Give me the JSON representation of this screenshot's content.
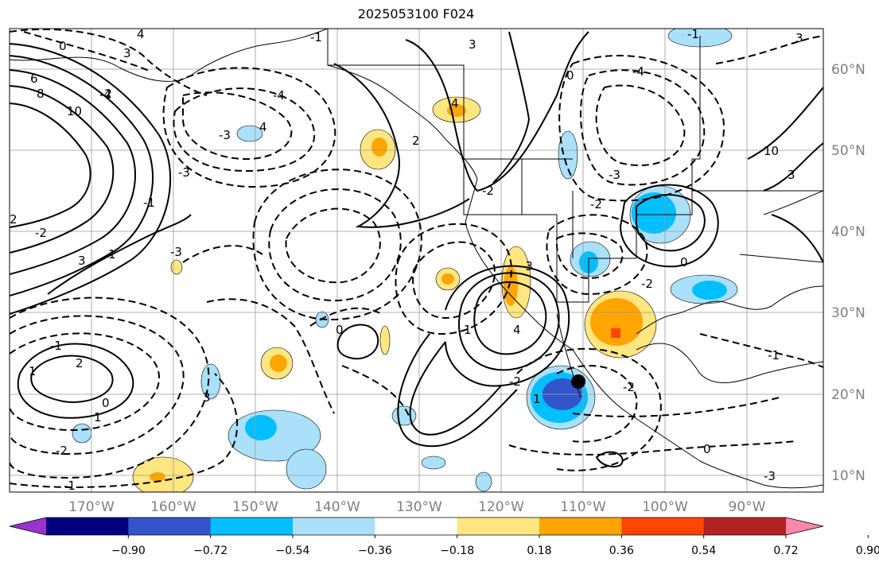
{
  "title": "2025053100 F024",
  "lon_ticks": [
    "170°W",
    "160°W",
    "150°W",
    "140°W",
    "130°W",
    "120°W",
    "110°W",
    "100°W",
    "90°W"
  ],
  "lat_ticks": [
    "60°N",
    "50°N",
    "40°N",
    "30°N",
    "20°N",
    "10°N"
  ],
  "colorbar": {
    "colors": [
      "#9933cc",
      "#000080",
      "#3355cc",
      "#00bfff",
      "#aae0fa",
      "#ffffff",
      "#ffe680",
      "#ffa500",
      "#ff4500",
      "#b22222",
      "#ff88aa"
    ],
    "labels": [
      "−0.90",
      "−0.72",
      "−0.54",
      "−0.36",
      "−0.18",
      "0.18",
      "0.36",
      "0.54",
      "0.72",
      "0.90"
    ]
  },
  "contour_labels": [
    "4",
    "3",
    "0",
    "-1",
    "6",
    "8",
    "10",
    "2",
    "3",
    "-2",
    "-4",
    "-3",
    "4",
    "3",
    "-4",
    "-2",
    "-3",
    "-2",
    "2",
    "4",
    "-1",
    "0",
    "-3",
    "-2",
    "1",
    "2",
    "1",
    "0",
    "-1",
    "-2",
    "-1",
    "1",
    "0",
    "-2",
    "-3",
    "-2",
    "1",
    "1",
    "-1",
    "0",
    "-3",
    "0",
    "4",
    "-4",
    "3",
    "3",
    "-1",
    "-3",
    "-2",
    "10",
    "3"
  ],
  "markers": {
    "point": "black-dot"
  }
}
